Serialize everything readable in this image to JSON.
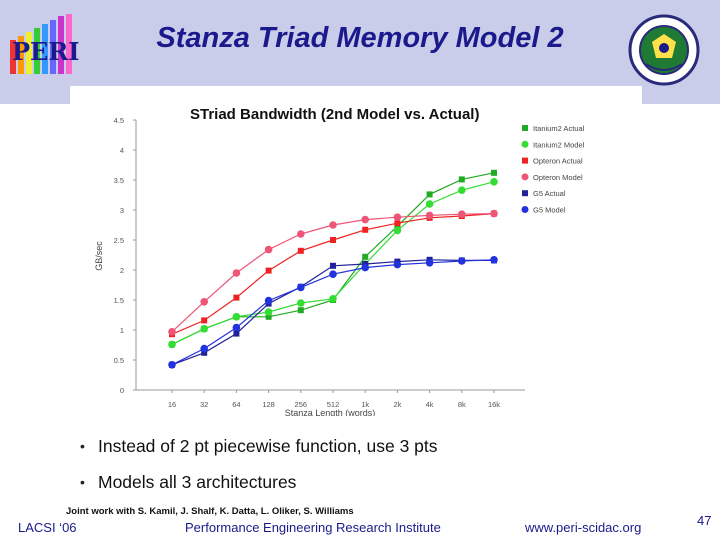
{
  "slide": {
    "title": "Stanza Triad Memory Model 2",
    "bullets": [
      "Instead of 2 pt piecewise function, use 3 pts",
      "Models all 3 architectures"
    ],
    "joint_work": "Joint work with S. Kamil, J. Shalf, K. Datta, L. Oliker, S. Williams",
    "footer": {
      "left": "LACSI ‘06",
      "center": "Performance Engineering Research Institute",
      "right": "www.peri-scidac.org",
      "page": "47"
    },
    "logo_left_text": "PERI",
    "colors": {
      "title": "#1a1a8c",
      "band": "#c9cdea"
    }
  },
  "chart_data": {
    "type": "line",
    "title": "STriad Bandwidth (2nd Model vs. Actual)",
    "xlabel": "Stanza Length (words)",
    "ylabel": "GB/sec",
    "categories": [
      "16",
      "32",
      "64",
      "128",
      "256",
      "512",
      "1k",
      "2k",
      "4k",
      "8k",
      "16k"
    ],
    "ylim": [
      0,
      4.5
    ],
    "yticks": [
      "0",
      "0.5",
      "1",
      "1.5",
      "2",
      "2.5",
      "3",
      "3.5",
      "4",
      "4.5"
    ],
    "grid": "none",
    "legend_position": "top-right",
    "series": [
      {
        "name": "Itanium2 Actual",
        "color": "#22aa22",
        "marker": "square",
        "values": [
          0.76,
          1.02,
          1.22,
          1.22,
          1.33,
          1.5,
          2.22,
          2.73,
          3.26,
          3.51,
          3.62
        ]
      },
      {
        "name": "Itanium2 Model",
        "color": "#33dd33",
        "marker": "circle",
        "values": [
          0.76,
          1.02,
          1.22,
          1.3,
          1.45,
          1.52,
          2.1,
          2.66,
          3.1,
          3.33,
          3.47
        ]
      },
      {
        "name": "Opteron Actual",
        "color": "#ee2222",
        "marker": "square",
        "values": [
          0.93,
          1.16,
          1.54,
          1.99,
          2.32,
          2.5,
          2.67,
          2.78,
          2.87,
          2.9,
          2.94
        ]
      },
      {
        "name": "Opteron Model",
        "color": "#ee5577",
        "marker": "circle",
        "values": [
          0.97,
          1.47,
          1.95,
          2.34,
          2.6,
          2.75,
          2.84,
          2.88,
          2.91,
          2.93,
          2.94
        ]
      },
      {
        "name": "G5 Actual",
        "color": "#222299",
        "marker": "square",
        "values": [
          0.42,
          0.62,
          0.94,
          1.44,
          1.72,
          2.07,
          2.1,
          2.14,
          2.17,
          2.16,
          2.16
        ]
      },
      {
        "name": "G5 Model",
        "color": "#2233dd",
        "marker": "circle",
        "values": [
          0.42,
          0.69,
          1.04,
          1.49,
          1.71,
          1.93,
          2.04,
          2.09,
          2.12,
          2.15,
          2.17
        ]
      }
    ]
  }
}
